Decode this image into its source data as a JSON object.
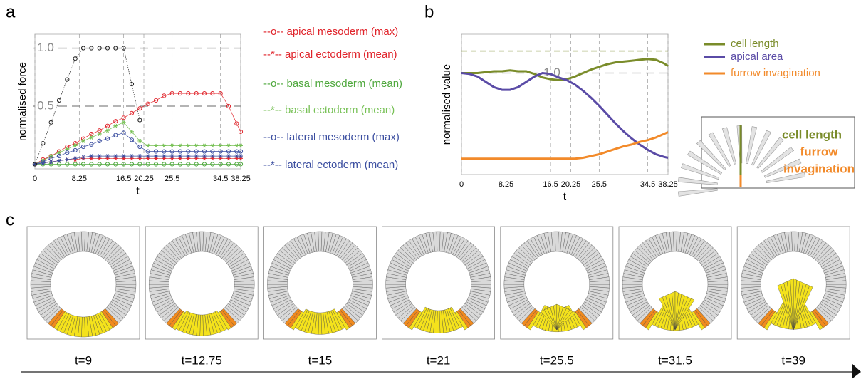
{
  "panel_labels": [
    "a",
    "b",
    "c"
  ],
  "chart_data": [
    {
      "type": "line",
      "xlabel": "t",
      "ylabel": "normalised force",
      "x": [
        0,
        1.5,
        3,
        4.5,
        6,
        7.5,
        9,
        10.5,
        12,
        13.5,
        15,
        16.5,
        18,
        19.5,
        21,
        22.5,
        24,
        25.5,
        27,
        28.5,
        30,
        31.5,
        33,
        34.5,
        36,
        37.5,
        38.25
      ],
      "xlim": [
        0,
        38.25
      ],
      "xticks": [
        0,
        8.25,
        16.5,
        20.25,
        25.5,
        34.5,
        38.25
      ],
      "ylim": [
        -0.04,
        1.12
      ],
      "yticks": [
        {
          "value": 1,
          "label": "1.0"
        },
        0.5
      ],
      "grid": true,
      "series": [
        {
          "name": "--o-- apical mesoderm (max)",
          "color": "#e0242b",
          "marker": "o",
          "values": [
            0,
            0.04,
            0.07,
            0.11,
            0.15,
            0.18,
            0.22,
            0.26,
            0.29,
            0.33,
            0.37,
            0.4,
            0.44,
            0.48,
            0.52,
            0.55,
            0.59,
            0.61,
            0.61,
            0.61,
            0.61,
            0.61,
            0.61,
            0.61,
            0.5,
            0.35,
            0.28
          ]
        },
        {
          "name": "--*-- apical ectoderm (mean)",
          "color": "#e0242b",
          "marker": "*",
          "values": [
            0,
            0.01,
            0.02,
            0.03,
            0.04,
            0.04,
            0.05,
            0.05,
            0.05,
            0.05,
            0.05,
            0.05,
            0.05,
            0.05,
            0.05,
            0.05,
            0.05,
            0.05,
            0.05,
            0.05,
            0.05,
            0.05,
            0.05,
            0.05,
            0.05,
            0.05,
            0.05
          ]
        },
        {
          "name": "--o-- basal mesoderm (mean)",
          "color": "#4fa83d",
          "marker": "o",
          "values": [
            0,
            0,
            0,
            0,
            0,
            0,
            0,
            0,
            0,
            0,
            0,
            0,
            0,
            0,
            0,
            0,
            0,
            0,
            0,
            0,
            0,
            0,
            0,
            0,
            0,
            0,
            0
          ]
        },
        {
          "name": "--*-- basal ectoderm (mean)",
          "color": "#78c157",
          "marker": "*",
          "values": [
            0,
            0.03,
            0.07,
            0.1,
            0.13,
            0.16,
            0.2,
            0.23,
            0.26,
            0.29,
            0.33,
            0.36,
            0.28,
            0.2,
            0.16,
            0.16,
            0.16,
            0.16,
            0.16,
            0.16,
            0.16,
            0.16,
            0.16,
            0.16,
            0.16,
            0.16,
            0.16
          ]
        },
        {
          "name": "--o-- lateral mesoderm (max)",
          "color": "#3b4ea0",
          "marker": "o",
          "values": [
            0,
            0.02,
            0.05,
            0.07,
            0.1,
            0.12,
            0.15,
            0.17,
            0.2,
            0.22,
            0.25,
            0.27,
            0.21,
            0.15,
            0.11,
            0.11,
            0.11,
            0.11,
            0.11,
            0.11,
            0.11,
            0.11,
            0.11,
            0.11,
            0.11,
            0.11,
            0.11
          ]
        },
        {
          "name": "--*-- lateral ectoderm (mean)",
          "color": "#3b4ea0",
          "marker": "*",
          "values": [
            0,
            0.01,
            0.02,
            0.03,
            0.04,
            0.05,
            0.06,
            0.07,
            0.07,
            0.07,
            0.07,
            0.07,
            0.07,
            0.07,
            0.07,
            0.07,
            0.07,
            0.07,
            0.07,
            0.07,
            0.07,
            0.07,
            0.07,
            0.07,
            0.07,
            0.07,
            0.07
          ]
        },
        {
          "color": "#222222",
          "marker": "o",
          "values": [
            0,
            0.18,
            0.36,
            0.55,
            0.73,
            0.91,
            1,
            1,
            1,
            1,
            1,
            1,
            0.69,
            0.38,
            null,
            null,
            null,
            null,
            null,
            null,
            null,
            null,
            null,
            null,
            null,
            null,
            null
          ]
        }
      ]
    },
    {
      "type": "line",
      "xlabel": "t",
      "ylabel": "normalised value",
      "x": [
        0,
        1.5,
        3,
        4.5,
        6,
        7.5,
        9,
        10.5,
        12,
        13.5,
        15,
        16.5,
        18,
        19.5,
        21,
        22.5,
        24,
        25.5,
        27,
        28.5,
        30,
        31.5,
        33,
        34.5,
        36,
        37.5,
        38.25
      ],
      "xlim": [
        0,
        38.25
      ],
      "xticks": [
        0,
        8.25,
        16.5,
        20.25,
        25.5,
        34.5,
        38.25
      ],
      "ylim": [
        -0.15,
        1.44
      ],
      "yticks": [
        {
          "value": 1,
          "label": "1.0"
        }
      ],
      "grid": true,
      "hlines": [
        {
          "value": 1.25,
          "color": "#7a8c2a"
        }
      ],
      "series": [
        {
          "name": "cell length",
          "color": "#7a8c2a",
          "values": [
            1,
            1,
            1,
            1.01,
            1.02,
            1.02,
            1.03,
            1.02,
            1.02,
            0.99,
            0.95,
            0.93,
            0.92,
            0.93,
            0.96,
            1.0,
            1.04,
            1.07,
            1.1,
            1.12,
            1.13,
            1.14,
            1.15,
            1.16,
            1.15,
            1.11,
            1.08
          ]
        },
        {
          "name": "apical area",
          "color": "#5a4ba6",
          "values": [
            1,
            0.99,
            0.96,
            0.9,
            0.84,
            0.81,
            0.81,
            0.84,
            0.9,
            0.96,
            1.0,
            0.99,
            0.95,
            0.92,
            0.87,
            0.8,
            0.72,
            0.63,
            0.53,
            0.43,
            0.34,
            0.26,
            0.19,
            0.13,
            0.08,
            0.05,
            0.04
          ]
        },
        {
          "name": "furrow invagination",
          "color": "#f28a2a",
          "values": [
            0.03,
            0.03,
            0.03,
            0.03,
            0.03,
            0.03,
            0.03,
            0.03,
            0.03,
            0.03,
            0.03,
            0.03,
            0.03,
            0.03,
            0.03,
            0.04,
            0.06,
            0.08,
            0.11,
            0.14,
            0.17,
            0.19,
            0.22,
            0.24,
            0.27,
            0.31,
            0.33
          ]
        }
      ]
    }
  ],
  "inset": {
    "cell_length": "cell length",
    "furrow": [
      "furrow",
      "invagination"
    ]
  },
  "snapshots": [
    "t=9",
    "t=12.75",
    "t=15",
    "t=21",
    "t=25.5",
    "t=31.5",
    "t=39"
  ]
}
